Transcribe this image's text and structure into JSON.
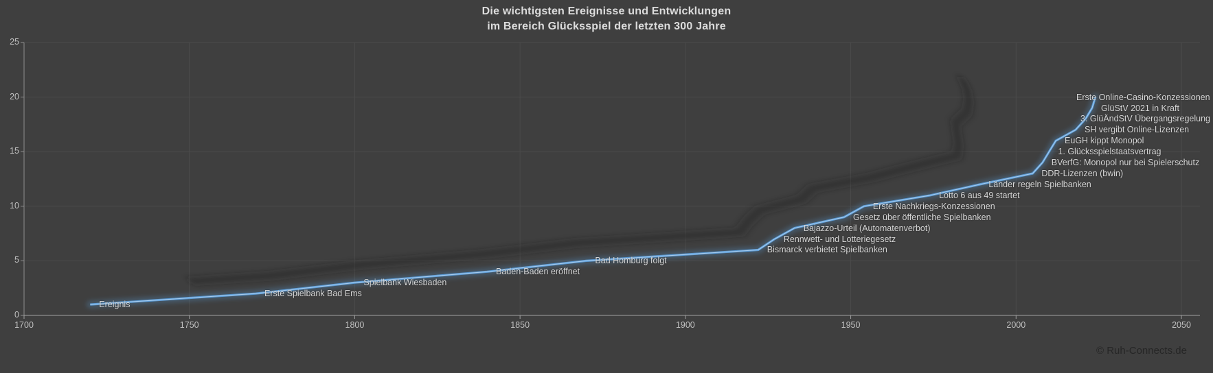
{
  "title": {
    "line1": "Die wichtigsten Ereignisse und Entwicklungen",
    "line2": "im Bereich Glücksspiel der letzten 300 Jahre"
  },
  "watermark": "© Ruh-Connects.de",
  "chart_data": {
    "type": "line",
    "title": "Die wichtigsten Ereignisse und Entwicklungen im Bereich Glücksspiel der letzten 300 Jahre",
    "xlabel": "",
    "ylabel": "",
    "xlim": [
      1700,
      2050
    ],
    "ylim": [
      0,
      25
    ],
    "x_ticks": [
      1700,
      1750,
      1800,
      1850,
      1900,
      1950,
      2000,
      2050
    ],
    "y_ticks": [
      0,
      5,
      10,
      15,
      20,
      25
    ],
    "grid": true,
    "legend": "none",
    "series_name": "Ereignis",
    "x": [
      1720,
      1770,
      1800,
      1840,
      1870,
      1922,
      1927,
      1933,
      1948,
      1954,
      1974,
      1989,
      2005,
      2008,
      2010,
      2012,
      2018,
      2021,
      2023,
      2024
    ],
    "values": [
      1,
      2,
      3,
      4,
      5,
      6,
      7,
      8,
      9,
      10,
      11,
      12,
      13,
      14,
      15,
      16,
      17,
      18,
      19,
      20
    ],
    "point_labels": [
      "Ereignis",
      "Erste Spielbank Bad Ems",
      "Spielbank Wiesbaden",
      "Baden-Baden eröffnet",
      "Bad Homburg folgt",
      "Bismarck verbietet Spielbanken",
      "Rennwett- und Lotteriegesetz",
      "Bajazzo-Urteil (Automatenverbot)",
      "Gesetz über öffentliche Spielbanken",
      "Erste Nachkriegs-Konzessionen",
      "Lotto 6 aus 49 startet",
      "Länder regeln Spielbanken",
      "DDR-Lizenzen (bwin)",
      "BVerfG: Monopol nur bei Spielerschutz",
      "1. Glücksspielstaatsvertrag",
      "EuGH kippt Monopol",
      "SH vergibt Online-Lizenzen",
      "3. GlüÄndStV Übergangsregelung",
      "GlüStV 2021 in Kraft",
      "Erste Online-Casino-Konzessionen"
    ],
    "colors": {
      "background": "#3f3f3f",
      "gridline": "#4b4b4b",
      "axis": "#a0a0a0",
      "tick_text": "#c0c0c0",
      "title_text": "#dcdcdc",
      "label_text": "#d6d6d6",
      "line": "#5b9bd5",
      "line_highlight": "#b4d4f2",
      "shadow": "#222222",
      "watermark_text": "#262626"
    }
  }
}
